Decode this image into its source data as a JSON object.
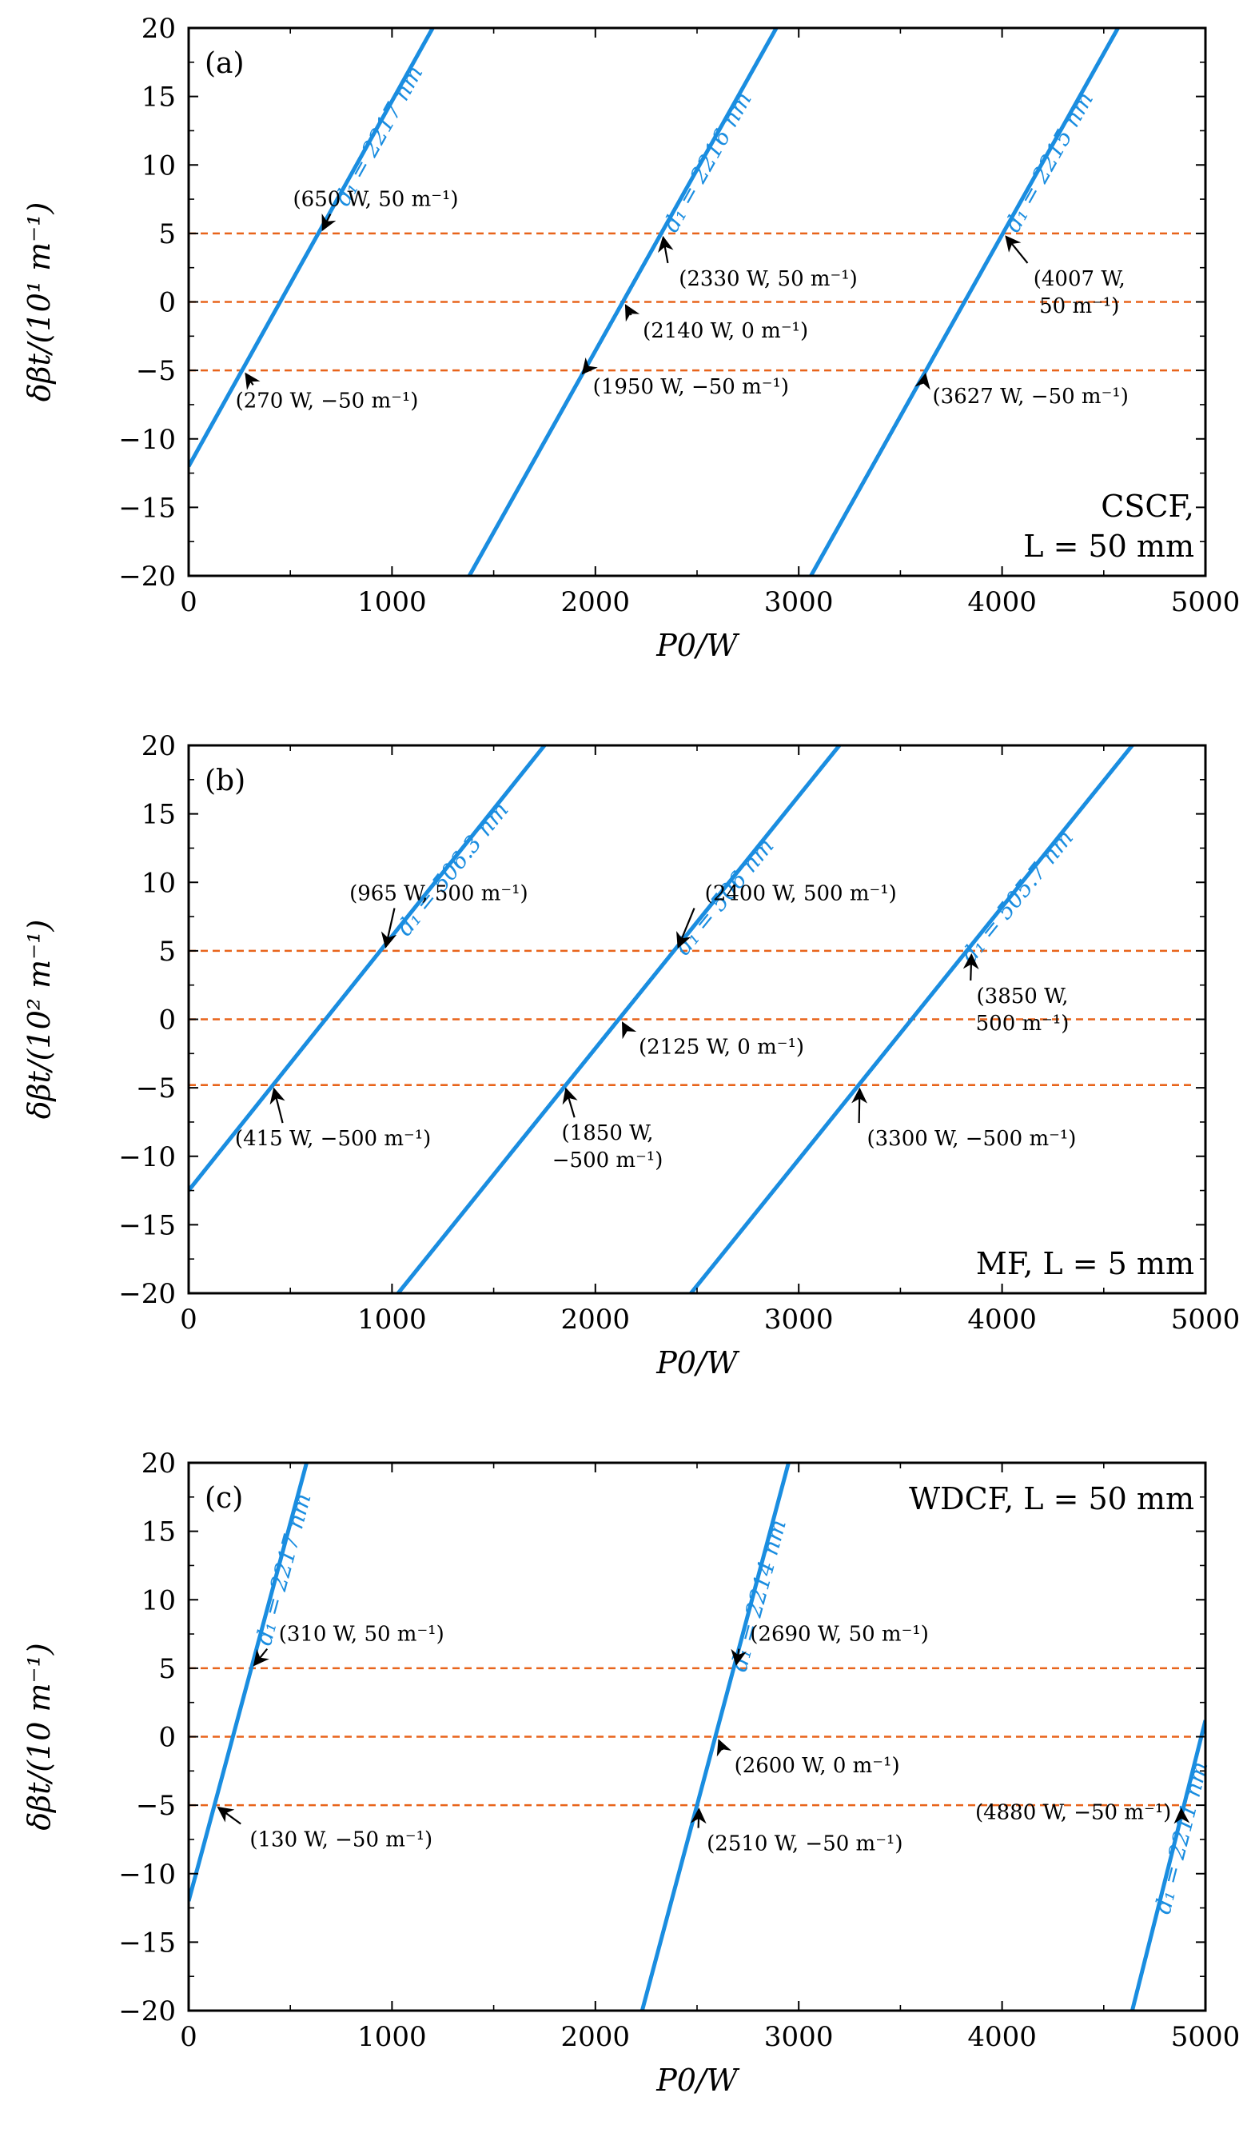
{
  "chart_data": [
    {
      "type": "line",
      "panel_label": "(a)",
      "box_label_lines": [
        "CSCF,",
        "L = 50 mm"
      ],
      "xlabel": "P0/W",
      "ylabel": "δβt/(10¹ m⁻¹)",
      "xlim": [
        0,
        5000
      ],
      "ylim": [
        -20,
        20
      ],
      "xticks": [
        0,
        1000,
        2000,
        3000,
        4000,
        5000
      ],
      "yticks": [
        -20,
        -15,
        -10,
        -5,
        0,
        5,
        10,
        15,
        20
      ],
      "line_color": "#1a8de0",
      "ref_color": "#e8641b",
      "ref_lines": [
        5,
        0,
        -5
      ],
      "series": [
        {
          "name": "d₁ = 2217 nm",
          "x": [
            0,
            1200
          ],
          "y": [
            -12,
            20
          ]
        },
        {
          "name": "d₁ = 2216 nm",
          "x": [
            1380,
            2890
          ],
          "y": [
            -20,
            20
          ]
        },
        {
          "name": "d₁ = 2215 nm",
          "x": [
            3060,
            4570
          ],
          "y": [
            -20,
            20
          ]
        }
      ],
      "annotations": [
        {
          "lines": [
            "(650 W, 50 m⁻¹)"
          ],
          "point": [
            650,
            5
          ],
          "text_at": [
            920,
            7.0
          ]
        },
        {
          "lines": [
            "(270 W, −50 m⁻¹)"
          ],
          "point": [
            270,
            -5
          ],
          "text_at": [
            680,
            -7.7
          ]
        },
        {
          "lines": [
            "(2330 W, 50 m⁻¹)"
          ],
          "point": [
            2330,
            5
          ],
          "text_at": [
            2850,
            1.2
          ]
        },
        {
          "lines": [
            "(2140 W, 0 m⁻¹)"
          ],
          "point": [
            2140,
            0
          ],
          "text_at": [
            2640,
            -2.6
          ]
        },
        {
          "lines": [
            "(1950 W, −50 m⁻¹)"
          ],
          "point": [
            1950,
            -5
          ],
          "text_at": [
            2470,
            -6.7
          ]
        },
        {
          "lines": [
            "(4007 W,",
            "50 m⁻¹)"
          ],
          "point": [
            4007,
            5
          ],
          "text_at": [
            4380,
            1.2
          ]
        },
        {
          "lines": [
            "(3627 W, −50 m⁻¹)"
          ],
          "point": [
            3627,
            -5
          ],
          "text_at": [
            4140,
            -7.4
          ]
        }
      ]
    },
    {
      "type": "line",
      "panel_label": "(b)",
      "box_label_lines": [
        "MF, L = 5 mm"
      ],
      "xlabel": "P0/W",
      "ylabel": "δβt/(10² m⁻¹)",
      "xlim": [
        0,
        5000
      ],
      "ylim": [
        -20,
        20
      ],
      "xticks": [
        0,
        1000,
        2000,
        3000,
        4000,
        5000
      ],
      "yticks": [
        -20,
        -15,
        -10,
        -5,
        0,
        5,
        10,
        15,
        20
      ],
      "line_color": "#1a8de0",
      "ref_color": "#e8641b",
      "ref_lines": [
        5,
        0,
        -4.8
      ],
      "series": [
        {
          "name": "d₁ = 506.3 nm",
          "x": [
            0,
            1750
          ],
          "y": [
            -12.5,
            20
          ]
        },
        {
          "name": "d₁ = 506 nm",
          "x": [
            1030,
            3200
          ],
          "y": [
            -20,
            20
          ]
        },
        {
          "name": "d₁ = 505.7 nm",
          "x": [
            2470,
            4640
          ],
          "y": [
            -20,
            20
          ]
        }
      ],
      "annotations": [
        {
          "lines": [
            "(965 W, 500 m⁻¹)"
          ],
          "point": [
            965,
            5
          ],
          "text_at": [
            1230,
            8.7
          ]
        },
        {
          "lines": [
            "(415 W, −500 m⁻¹)"
          ],
          "point": [
            415,
            -4.8
          ],
          "text_at": [
            710,
            -9.2
          ]
        },
        {
          "lines": [
            "(2400 W, 500 m⁻¹)"
          ],
          "point": [
            2400,
            5
          ],
          "text_at": [
            3010,
            8.7
          ]
        },
        {
          "lines": [
            "(2125 W, 0 m⁻¹)"
          ],
          "point": [
            2125,
            0
          ],
          "text_at": [
            2620,
            -2.5
          ]
        },
        {
          "lines": [
            "(1850 W,",
            "−500 m⁻¹)"
          ],
          "point": [
            1850,
            -4.8
          ],
          "text_at": [
            2060,
            -8.8
          ]
        },
        {
          "lines": [
            "(3850 W,",
            "500 m⁻¹)"
          ],
          "point": [
            3850,
            5
          ],
          "text_at": [
            4100,
            1.2
          ]
        },
        {
          "lines": [
            "(3300 W, −500 m⁻¹)"
          ],
          "point": [
            3300,
            -4.8
          ],
          "text_at": [
            3850,
            -9.2
          ]
        }
      ]
    },
    {
      "type": "line",
      "panel_label": "(c)",
      "box_label_lines": [
        "WDCF, L = 50 mm"
      ],
      "xlabel": "P0/W",
      "ylabel": "δβt/(10 m⁻¹)",
      "xlim": [
        0,
        5000
      ],
      "ylim": [
        -20,
        20
      ],
      "xticks": [
        0,
        1000,
        2000,
        3000,
        4000,
        5000
      ],
      "yticks": [
        -20,
        -15,
        -10,
        -5,
        0,
        5,
        10,
        15,
        20
      ],
      "line_color": "#1a8de0",
      "ref_color": "#e8641b",
      "ref_lines": [
        5,
        0,
        -5
      ],
      "series": [
        {
          "name": "d₁ = 2217 nm",
          "x": [
            0,
            580
          ],
          "y": [
            -12,
            20
          ]
        },
        {
          "name": "d₁ = 2214 nm",
          "x": [
            2230,
            2950
          ],
          "y": [
            -20,
            20
          ]
        },
        {
          "name": "d₁ = 2211 nm",
          "x": [
            4640,
            5000
          ],
          "y": [
            -20,
            1.2
          ]
        }
      ],
      "annotations": [
        {
          "lines": [
            "(310 W, 50 m⁻¹)"
          ],
          "point": [
            310,
            5
          ],
          "text_at": [
            850,
            7.0
          ]
        },
        {
          "lines": [
            "(130 W, −50 m⁻¹)"
          ],
          "point": [
            130,
            -5
          ],
          "text_at": [
            750,
            -8.0
          ]
        },
        {
          "lines": [
            "(2690 W, 50 m⁻¹)"
          ],
          "point": [
            2690,
            5
          ],
          "text_at": [
            3200,
            7.0
          ]
        },
        {
          "lines": [
            "(2600 W, 0 m⁻¹)"
          ],
          "point": [
            2600,
            0
          ],
          "text_at": [
            3090,
            -2.6
          ]
        },
        {
          "lines": [
            "(2510 W, −50 m⁻¹)"
          ],
          "point": [
            2510,
            -5
          ],
          "text_at": [
            3030,
            -8.3
          ]
        },
        {
          "lines": [
            "(4880 W, −50 m⁻¹)"
          ],
          "point": [
            4880,
            -5
          ],
          "text_at": [
            4350,
            -6.0
          ]
        }
      ]
    }
  ]
}
